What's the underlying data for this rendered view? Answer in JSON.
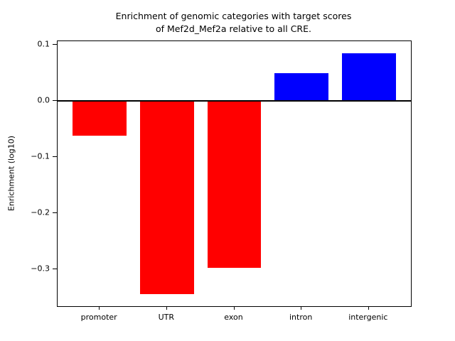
{
  "chart_data": {
    "type": "bar",
    "title_lines": [
      "Enrichment of genomic categories with target scores",
      "of Mef2d_Mef2a relative to all CRE."
    ],
    "title": "Enrichment of genomic categories with target scores of Mef2d_Mef2a relative to all CRE.",
    "xlabel": "",
    "ylabel": "Enrichment (log10)",
    "categories": [
      "promoter",
      "UTR",
      "exon",
      "intron",
      "intergenic"
    ],
    "values": [
      -0.062,
      -0.345,
      -0.298,
      0.05,
      0.085
    ],
    "bar_colors": [
      "#ff0000",
      "#ff0000",
      "#ff0000",
      "#0000ff",
      "#0000ff"
    ],
    "negative_color": "#ff0000",
    "positive_color": "#0000ff",
    "ylim": [
      -0.3665,
      0.1065
    ],
    "ytick_values": [
      0.1,
      0.0,
      -0.1,
      -0.2,
      -0.3
    ],
    "ytick_labels": [
      "0.1",
      "0.0",
      "−0.1",
      "−0.2",
      "−0.3"
    ],
    "zero_line": true,
    "grid": false,
    "legend": "none",
    "bar_width_fraction": 0.8,
    "x_margin_units": 0.625
  }
}
